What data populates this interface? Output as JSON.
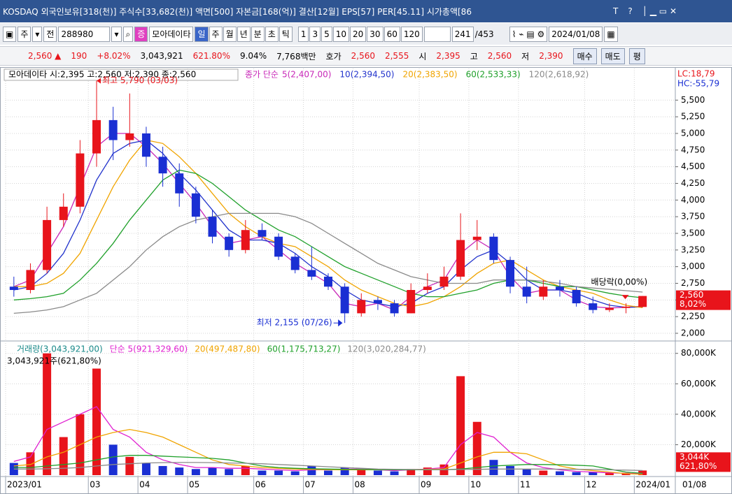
{
  "title_bar": {
    "text": "KOSDAQ 외국인보유[318(천)] 주식수[33,682(천)] 액면[500] 자본금[168(억)] 결산[12월] EPS[57] PER[45.11] 시가총액[86",
    "buttons": [
      "T",
      "?"
    ]
  },
  "toolbar": {
    "market": "주",
    "all": "전",
    "code": "288980",
    "badge": "증",
    "name": "모아데이타",
    "periods": [
      "일",
      "주",
      "월",
      "년",
      "분",
      "초",
      "틱"
    ],
    "intervals": [
      "1",
      "3",
      "5",
      "10",
      "20",
      "30",
      "60",
      "120"
    ],
    "count": "241",
    "total": "/453",
    "date": "2024/01/08"
  },
  "quote_bar": {
    "price": "2,560 ▲",
    "change": "190",
    "rate": "+8.02%",
    "volume": "3,043,921",
    "volume_rate": "621.80%",
    "turnover": "9.04%",
    "amount": "7,768백만",
    "ask_label": "호가",
    "ask": "2,560",
    "bid": "2,555",
    "open_label": "시",
    "open": "2,395",
    "high_label": "고",
    "high": "2,560",
    "low_label": "저",
    "low": "2,390",
    "buy": "매수",
    "sell": "매도",
    "eval": "평"
  },
  "chart_data": [
    {
      "type": "candlestick",
      "title": "모아데이타 시:2,395 고:2,560 저:2,390 종:2,560",
      "ma_prefix": "종가 단순",
      "categories": [
        "2023/01",
        null,
        null,
        null,
        null,
        "03",
        null,
        null,
        "04",
        null,
        null,
        "05",
        null,
        null,
        null,
        "06",
        null,
        null,
        "07",
        null,
        null,
        "08",
        null,
        null,
        null,
        "09",
        null,
        null,
        "10",
        null,
        null,
        "11",
        null,
        null,
        null,
        "12",
        null,
        null,
        "2024/01"
      ],
      "open": [
        2700,
        2650,
        2950,
        3700,
        3900,
        4700,
        5200,
        4900,
        5000,
        4650,
        4400,
        4100,
        3750,
        3450,
        3250,
        3550,
        3450,
        3150,
        2950,
        2850,
        2700,
        2300,
        2500,
        2450,
        2300,
        2650,
        2700,
        2850,
        3400,
        3450,
        3100,
        2700,
        2550,
        2700,
        2650,
        2450,
        2350,
        2380,
        2395
      ],
      "high": [
        2850,
        3050,
        3900,
        4100,
        4900,
        5790,
        5400,
        5600,
        5100,
        4800,
        4550,
        4200,
        3850,
        3500,
        3700,
        3650,
        3500,
        3200,
        3300,
        2900,
        2750,
        2600,
        2550,
        2500,
        2750,
        2900,
        3000,
        3800,
        3700,
        3500,
        3150,
        3000,
        2800,
        2800,
        2700,
        2550,
        2450,
        2450,
        2560
      ],
      "low": [
        2550,
        2600,
        2900,
        3600,
        3800,
        4500,
        4600,
        4800,
        4500,
        4200,
        3900,
        3650,
        3350,
        3150,
        3200,
        3400,
        3100,
        2900,
        2800,
        2650,
        2155,
        2250,
        2350,
        2250,
        2300,
        2600,
        2650,
        2800,
        3250,
        3050,
        2600,
        2450,
        2500,
        2550,
        2400,
        2300,
        2320,
        2300,
        2390
      ],
      "close": [
        2650,
        2950,
        3700,
        3900,
        4700,
        5200,
        4900,
        5000,
        4650,
        4400,
        4100,
        3750,
        3450,
        3250,
        3550,
        3450,
        3150,
        2950,
        2850,
        2700,
        2300,
        2500,
        2450,
        2300,
        2650,
        2700,
        2850,
        3400,
        3450,
        3100,
        2700,
        2550,
        2700,
        2650,
        2450,
        2350,
        2380,
        2400,
        2560
      ],
      "up_color": "#e8141b",
      "down_color": "#1a2fd3",
      "series": [
        {
          "name": "5(2,407,00)",
          "color": "#c828b8",
          "values": [
            2700,
            2800,
            3200,
            3600,
            4200,
            4800,
            5000,
            5000,
            4800,
            4550,
            4250,
            3950,
            3600,
            3350,
            3400,
            3450,
            3250,
            3050,
            2900,
            2750,
            2450,
            2400,
            2450,
            2350,
            2550,
            2700,
            2800,
            3200,
            3400,
            3250,
            2850,
            2600,
            2650,
            2650,
            2500,
            2400,
            2380,
            2390,
            2407
          ]
        },
        {
          "name": "10(2,394,50)",
          "color": "#2233cc",
          "values": [
            2650,
            2700,
            2900,
            3200,
            3700,
            4300,
            4700,
            4850,
            4900,
            4700,
            4400,
            4150,
            3850,
            3550,
            3400,
            3400,
            3350,
            3200,
            3000,
            2850,
            2650,
            2500,
            2450,
            2400,
            2450,
            2600,
            2700,
            2950,
            3150,
            3250,
            3050,
            2800,
            2650,
            2650,
            2600,
            2500,
            2420,
            2390,
            2394.5
          ]
        },
        {
          "name": "20(2,383,50)",
          "color": "#f0a400",
          "values": [
            2700,
            2700,
            2750,
            2900,
            3200,
            3700,
            4200,
            4600,
            4900,
            4850,
            4650,
            4400,
            4100,
            3800,
            3600,
            3450,
            3350,
            3300,
            3150,
            3000,
            2800,
            2650,
            2550,
            2450,
            2400,
            2450,
            2550,
            2700,
            2900,
            3050,
            3100,
            2950,
            2800,
            2700,
            2650,
            2600,
            2500,
            2420,
            2383.5
          ]
        },
        {
          "name": "60(2,533,33)",
          "color": "#1fa02a",
          "values": [
            2500,
            2520,
            2550,
            2600,
            2800,
            3050,
            3350,
            3700,
            4000,
            4300,
            4450,
            4400,
            4250,
            4050,
            3850,
            3700,
            3550,
            3450,
            3300,
            3150,
            3000,
            2900,
            2800,
            2700,
            2600,
            2550,
            2550,
            2600,
            2650,
            2750,
            2800,
            2800,
            2750,
            2700,
            2700,
            2650,
            2600,
            2560,
            2533.33
          ]
        },
        {
          "name": "120(2,618,92)",
          "color": "#8a8a8a",
          "values": [
            2300,
            2320,
            2350,
            2400,
            2500,
            2600,
            2800,
            3000,
            3250,
            3450,
            3600,
            3700,
            3750,
            3800,
            3800,
            3800,
            3800,
            3750,
            3650,
            3500,
            3350,
            3200,
            3050,
            2950,
            2850,
            2800,
            2750,
            2750,
            2750,
            2800,
            2800,
            2800,
            2780,
            2750,
            2700,
            2680,
            2660,
            2640,
            2618.92
          ]
        }
      ],
      "ylim": [
        1895,
        5975
      ],
      "yticks": [
        {
          "value": 2000,
          "label": "2,000"
        },
        {
          "value": 2250,
          "label": "2,250"
        },
        {
          "value": 2500,
          "label": "2,500"
        },
        {
          "value": 2750,
          "label": "2,750"
        },
        {
          "value": 3000,
          "label": "3,000"
        },
        {
          "value": 3250,
          "label": "3,250"
        },
        {
          "value": 3500,
          "label": "3,500"
        },
        {
          "value": 3750,
          "label": "3,750"
        },
        {
          "value": 4000,
          "label": "4,000"
        },
        {
          "value": 4250,
          "label": "4,250"
        },
        {
          "value": 4500,
          "label": "4,500"
        },
        {
          "value": 4750,
          "label": "4,750"
        },
        {
          "value": 5000,
          "label": "5,000"
        },
        {
          "value": 5250,
          "label": "5,250"
        },
        {
          "value": 5500,
          "label": "5,500"
        }
      ],
      "grid": true,
      "annotations": {
        "high": "최고 5,790 (03/03)",
        "low": "최저 2,155 (07/26)",
        "event": "배당락(0,00%)"
      },
      "lc": "LC:18,79",
      "hc": "HC:-55,79",
      "last_label": "2,560",
      "last_change": "8,02%"
    },
    {
      "type": "bar",
      "title": "3,043,921주(621,80%)",
      "series": [
        {
          "name": "거래량(3,043,921,00)",
          "up_color": "#e8141b",
          "down_color": "#1a2fd3",
          "values": [
            8000,
            15000,
            80000,
            25000,
            40000,
            70000,
            20000,
            12000,
            8000,
            6000,
            5000,
            4000,
            5000,
            4000,
            6000,
            3000,
            3000,
            2500,
            6000,
            3000,
            5000,
            4000,
            3000,
            2500,
            4000,
            5000,
            7000,
            65000,
            35000,
            10000,
            6000,
            4000,
            3000,
            2500,
            2000,
            2000,
            1500,
            1500,
            3043.921
          ]
        },
        {
          "name": "단순 5(921,329,60)",
          "color": "#e020d0",
          "values": [
            9000,
            12000,
            30000,
            35000,
            40000,
            45000,
            30000,
            25000,
            15000,
            10000,
            7000,
            5000,
            5000,
            4500,
            4500,
            4000,
            3500,
            3000,
            3500,
            3500,
            4000,
            4000,
            3500,
            3000,
            3500,
            4000,
            5000,
            20000,
            28000,
            25000,
            15000,
            8000,
            5000,
            3500,
            2500,
            2000,
            1500,
            1200,
            921.3296
          ]
        },
        {
          "name": "20(497,487,80)",
          "color": "#f0a400",
          "values": [
            6000,
            7000,
            12000,
            15000,
            20000,
            25000,
            28000,
            30000,
            28000,
            25000,
            20000,
            15000,
            10000,
            7000,
            6000,
            5000,
            4500,
            4000,
            3800,
            3600,
            3500,
            3500,
            3500,
            3500,
            3600,
            3800,
            4000,
            8000,
            12000,
            15000,
            15000,
            14000,
            10000,
            6000,
            4000,
            3000,
            2000,
            1000,
            497.4878
          ]
        },
        {
          "name": "60(1,175,713,27)",
          "color": "#1fa02a",
          "values": [
            5000,
            5000,
            6000,
            7000,
            8000,
            10000,
            12000,
            13000,
            13000,
            12500,
            12000,
            11500,
            11000,
            10000,
            8000,
            6000,
            5000,
            4500,
            4200,
            4000,
            3800,
            3700,
            3600,
            3500,
            3500,
            3500,
            3600,
            4000,
            5000,
            6000,
            6500,
            7000,
            7000,
            6800,
            6500,
            6000,
            4000,
            2000,
            1175.71327
          ]
        },
        {
          "name": "120(3,020,284,77)",
          "color": "#8a8a8a",
          "values": [
            4000,
            4000,
            4200,
            4500,
            5000,
            6000,
            7000,
            7500,
            8000,
            8200,
            8300,
            8300,
            8200,
            8000,
            7800,
            7500,
            7000,
            6500,
            6000,
            5500,
            5000,
            4500,
            4000,
            3800,
            3700,
            3600,
            3600,
            3700,
            3800,
            4000,
            4000,
            4000,
            4000,
            3900,
            3800,
            3700,
            3500,
            3300,
            3020.28477
          ]
        }
      ],
      "ylim": [
        0,
        84000
      ],
      "yticks": [
        {
          "value": 20000,
          "label": "20,000K"
        },
        {
          "value": 40000,
          "label": "40,000K"
        },
        {
          "value": 60000,
          "label": "60,000K"
        },
        {
          "value": 80000,
          "label": "80,000K"
        }
      ],
      "grid": true,
      "last_label": "3,044K",
      "last_change": "621,80%",
      "date_label": "01/08"
    }
  ]
}
